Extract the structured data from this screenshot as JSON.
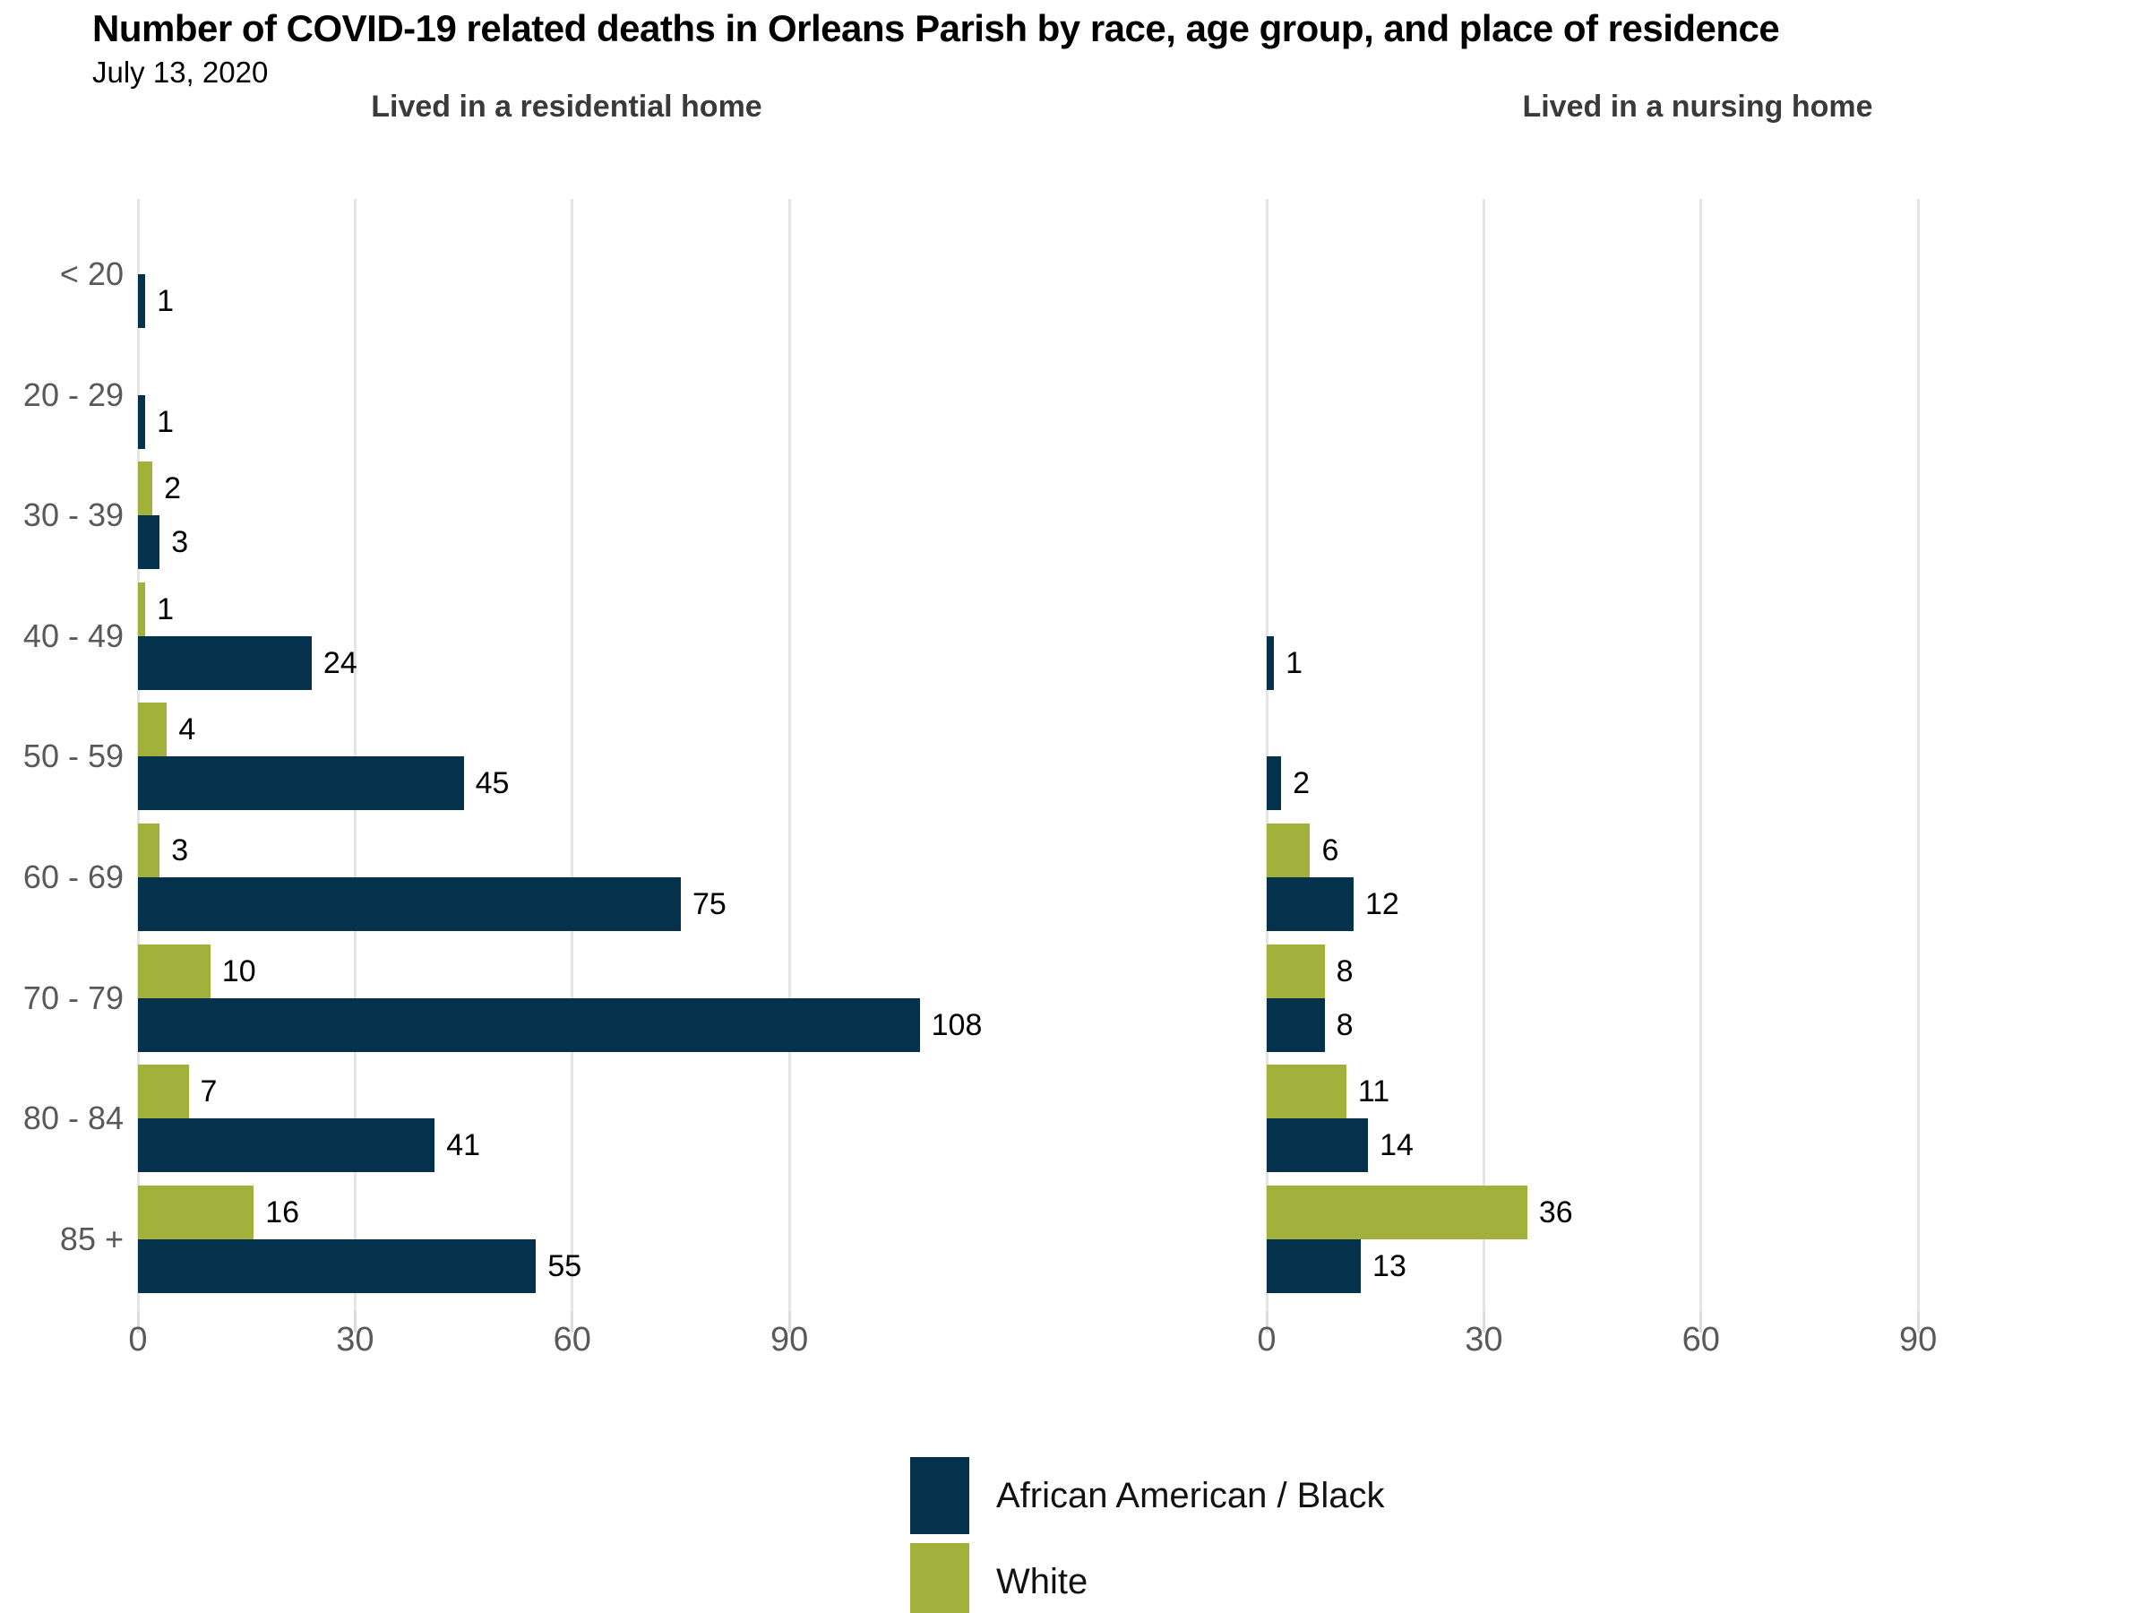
{
  "title": "Number of COVID-19 related deaths in Orleans Parish by race, age group, and place of residence",
  "subtitle": "July 13, 2020",
  "colors": {
    "black_series": "#04324c",
    "white_series": "#a2b13c",
    "gridline": "#e5e5e5",
    "axis_label": "#595959",
    "panel_title": "#3a3a3a"
  },
  "legend": [
    {
      "label": "African American / Black",
      "color_key": "black_series"
    },
    {
      "label": "White",
      "color_key": "white_series"
    }
  ],
  "chart_data": {
    "type": "bar",
    "orientation": "horizontal",
    "grid": "vertical-lines-on",
    "legend_position": "bottom-center",
    "categories": [
      "< 20",
      "20 - 29",
      "30 - 39",
      "40 - 49",
      "50 - 59",
      "60 - 69",
      "70 - 79",
      "80 - 84",
      "85 +"
    ],
    "x_ticks": [
      0,
      30,
      60,
      90
    ],
    "xlim": [
      0,
      120
    ],
    "panels": [
      {
        "title": "Lived in a residential home",
        "series": [
          {
            "name": "African American / Black",
            "values": [
              1,
              1,
              3,
              24,
              45,
              75,
              108,
              41,
              55
            ]
          },
          {
            "name": "White",
            "values": [
              null,
              null,
              2,
              1,
              4,
              3,
              10,
              7,
              16
            ]
          }
        ]
      },
      {
        "title": "Lived in a nursing home",
        "series": [
          {
            "name": "African American / Black",
            "values": [
              null,
              null,
              null,
              1,
              2,
              12,
              8,
              14,
              13
            ]
          },
          {
            "name": "White",
            "values": [
              null,
              null,
              null,
              null,
              null,
              6,
              8,
              11,
              36
            ]
          }
        ]
      }
    ]
  }
}
